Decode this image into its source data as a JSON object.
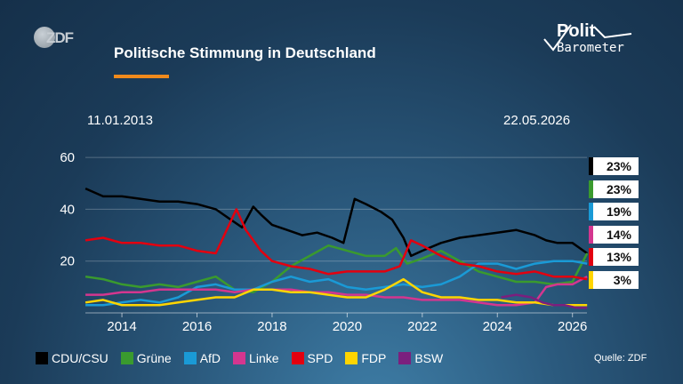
{
  "header": {
    "title": "Politische Stimmung in Deutschland",
    "brand": "ZDF",
    "logo_line1": "Polit",
    "logo_line2": "Barometer",
    "date_start": "11.01.2013",
    "date_end": "22.05.2026",
    "source": "Quelle: ZDF"
  },
  "colors": {
    "CDU/CSU": "#000000",
    "Grüne": "#3a9a2e",
    "AfD": "#1a9ad6",
    "Linke": "#d4368f",
    "SPD": "#e3000f",
    "FDP": "#ffd500",
    "BSW": "#7b1f7e",
    "accent": "#f08a1c"
  },
  "chart_data": {
    "type": "line",
    "title": "Politische Stimmung in Deutschland",
    "x_ticks": [
      "2014",
      "2016",
      "2018",
      "2020",
      "2022",
      "2024",
      "2026"
    ],
    "y_ticks": [
      20,
      40,
      60
    ],
    "xlim": [
      "2013-01-11",
      "2026-05-22"
    ],
    "ylim": [
      0,
      70
    ],
    "series": [
      {
        "name": "CDU/CSU",
        "x": [
          2013.03,
          2013.5,
          2014,
          2014.5,
          2015,
          2015.5,
          2016,
          2016.5,
          2016.9,
          2017.2,
          2017.5,
          2017.7,
          2018,
          2018.4,
          2018.8,
          2019.2,
          2019.6,
          2019.9,
          2020.2,
          2020.5,
          2020.9,
          2021.2,
          2021.5,
          2021.7,
          2022,
          2022.5,
          2023,
          2023.5,
          2024,
          2024.5,
          2025,
          2025.3,
          2025.6,
          2026,
          2026.39
        ],
        "y": [
          48,
          45,
          45,
          44,
          43,
          43,
          42,
          40,
          36,
          33,
          41,
          38,
          34,
          32,
          30,
          31,
          29,
          27,
          44,
          42,
          39,
          36,
          29,
          22,
          24,
          27,
          29,
          30,
          31,
          32,
          30,
          28,
          27,
          27,
          23
        ]
      },
      {
        "name": "Grüne",
        "x": [
          2013.03,
          2013.5,
          2014,
          2014.5,
          2015,
          2015.5,
          2016,
          2016.5,
          2017,
          2017.5,
          2018,
          2018.5,
          2019,
          2019.5,
          2020,
          2020.5,
          2021,
          2021.3,
          2021.6,
          2022,
          2022.5,
          2023,
          2023.5,
          2024,
          2024.5,
          2025,
          2025.5,
          2026,
          2026.39
        ],
        "y": [
          14,
          13,
          11,
          10,
          11,
          10,
          12,
          14,
          9,
          8,
          12,
          18,
          22,
          26,
          24,
          22,
          22,
          25,
          19,
          21,
          24,
          20,
          16,
          14,
          12,
          12,
          11,
          12,
          23
        ]
      },
      {
        "name": "AfD",
        "x": [
          2013.03,
          2013.5,
          2014,
          2014.5,
          2015,
          2015.5,
          2016,
          2016.5,
          2017,
          2017.5,
          2018,
          2018.5,
          2019,
          2019.5,
          2020,
          2020.5,
          2021,
          2021.5,
          2022,
          2022.5,
          2023,
          2023.5,
          2024,
          2024.5,
          2025,
          2025.5,
          2026,
          2026.39
        ],
        "y": [
          3,
          3,
          4,
          5,
          4,
          6,
          10,
          11,
          9,
          9,
          12,
          14,
          12,
          13,
          10,
          9,
          10,
          11,
          10,
          11,
          14,
          19,
          19,
          17,
          19,
          20,
          20,
          19
        ]
      },
      {
        "name": "Linke",
        "x": [
          2013.03,
          2013.5,
          2014,
          2014.5,
          2015,
          2015.5,
          2016,
          2016.5,
          2017,
          2017.5,
          2018,
          2018.5,
          2019,
          2019.5,
          2020,
          2020.5,
          2021,
          2021.5,
          2022,
          2022.5,
          2023,
          2023.5,
          2024,
          2024.5,
          2025,
          2025.3,
          2025.6,
          2026,
          2026.39
        ],
        "y": [
          7,
          7,
          8,
          8,
          9,
          9,
          9,
          9,
          8,
          9,
          9,
          9,
          8,
          8,
          7,
          7,
          6,
          6,
          5,
          5,
          5,
          4,
          3,
          3,
          4,
          10,
          11,
          11,
          14
        ]
      },
      {
        "name": "SPD",
        "x": [
          2013.03,
          2013.5,
          2014,
          2014.5,
          2015,
          2015.5,
          2016,
          2016.5,
          2017.05,
          2017.3,
          2017.7,
          2018,
          2018.5,
          2019,
          2019.5,
          2020,
          2020.5,
          2021,
          2021.4,
          2021.7,
          2022,
          2022.5,
          2023,
          2023.5,
          2024,
          2024.5,
          2025,
          2025.5,
          2026,
          2026.39
        ],
        "y": [
          28,
          29,
          27,
          27,
          26,
          26,
          24,
          23,
          40,
          32,
          24,
          20,
          18,
          17,
          15,
          16,
          16,
          16,
          18,
          28,
          26,
          22,
          19,
          18,
          16,
          15,
          16,
          14,
          14,
          13
        ]
      },
      {
        "name": "FDP",
        "x": [
          2013.03,
          2013.5,
          2014,
          2014.5,
          2015,
          2015.5,
          2016,
          2016.5,
          2017,
          2017.5,
          2018,
          2018.5,
          2019,
          2019.5,
          2020,
          2020.5,
          2021,
          2021.5,
          2022,
          2022.5,
          2023,
          2023.5,
          2024,
          2024.5,
          2025,
          2025.5,
          2026,
          2026.39
        ],
        "y": [
          4,
          5,
          3,
          3,
          3,
          4,
          5,
          6,
          6,
          9,
          9,
          8,
          8,
          7,
          6,
          6,
          9,
          13,
          8,
          6,
          6,
          5,
          5,
          4,
          4,
          3,
          3,
          3
        ]
      },
      {
        "name": "BSW",
        "x": [
          2024.1,
          2024.5,
          2024.9,
          2025.2,
          2025.5,
          2025.8,
          2026.1,
          2026.39
        ],
        "y": [
          6,
          7,
          6,
          4,
          3,
          3,
          2,
          2
        ]
      }
    ],
    "badges": [
      {
        "value": "23%",
        "color": "#000000"
      },
      {
        "value": "23%",
        "color": "#3a9a2e"
      },
      {
        "value": "19%",
        "color": "#1a9ad6"
      },
      {
        "value": "14%",
        "color": "#d4368f"
      },
      {
        "value": "13%",
        "color": "#e3000f"
      },
      {
        "value": "3%",
        "color": "#ffd500"
      }
    ],
    "legend": [
      "CDU/CSU",
      "Grüne",
      "AfD",
      "Linke",
      "SPD",
      "FDP",
      "BSW"
    ]
  }
}
